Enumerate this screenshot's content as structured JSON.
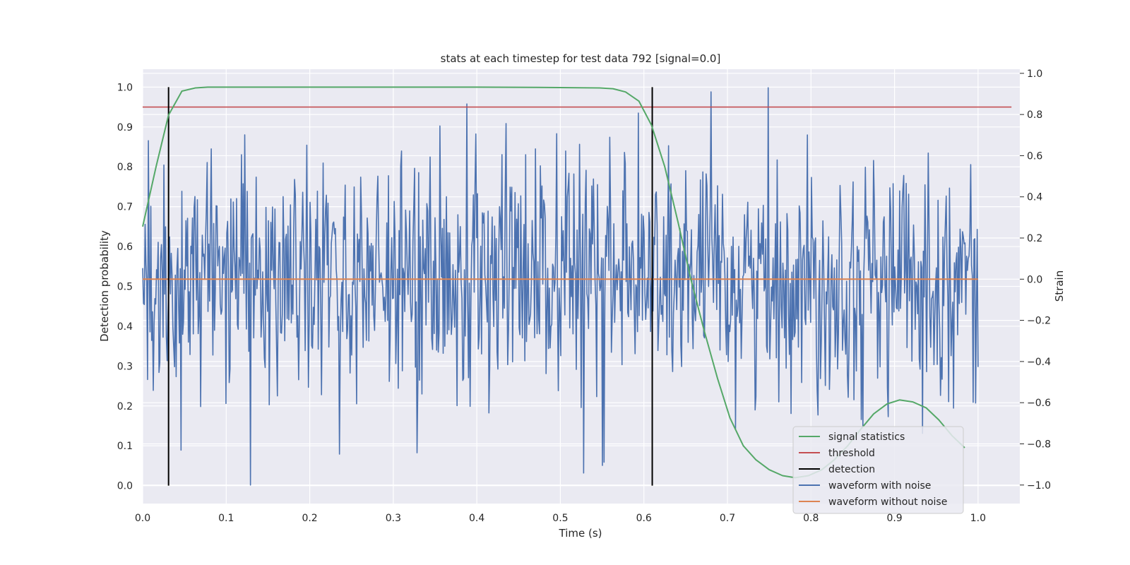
{
  "chart_data": {
    "type": "line",
    "title": "stats at each timestep for test data 792 [signal=0.0]",
    "xlabel": "Time (s)",
    "ylabel": "Detection probability",
    "ylabel_right": "Strain",
    "xlim": [
      0.0,
      1.05
    ],
    "ylim": [
      -0.045,
      1.045
    ],
    "ylim_right": [
      -1.09,
      1.02
    ],
    "xticks": [
      0.0,
      0.1,
      0.2,
      0.3,
      0.4,
      0.5,
      0.6,
      0.7,
      0.8,
      0.9,
      1.0
    ],
    "xtick_labels": [
      "0.0",
      "0.1",
      "0.2",
      "0.3",
      "0.4",
      "0.5",
      "0.6",
      "0.7",
      "0.8",
      "0.9",
      "1.0"
    ],
    "yticks": [
      0.0,
      0.1,
      0.2,
      0.3,
      0.4,
      0.5,
      0.6,
      0.7,
      0.8,
      0.9,
      1.0
    ],
    "ytick_labels": [
      "0.0",
      "0.1",
      "0.2",
      "0.3",
      "0.4",
      "0.5",
      "0.6",
      "0.7",
      "0.8",
      "0.9",
      "1.0"
    ],
    "yticks_right": [
      -1.0,
      -0.8,
      -0.6,
      -0.4,
      -0.2,
      0.0,
      0.2,
      0.4,
      0.6,
      0.8,
      1.0
    ],
    "ytick_labels_right": [
      "−1.0",
      "−0.8",
      "−0.6",
      "−0.4",
      "−0.2",
      "0.0",
      "0.2",
      "0.4",
      "0.6",
      "0.8",
      "1.0"
    ],
    "grid": true,
    "legend_position": "lower-right",
    "series": [
      {
        "name": "signal statistics",
        "color": "#55a868",
        "axis": "left",
        "x": [
          0.0,
          0.016,
          0.031,
          0.047,
          0.063,
          0.078,
          0.1,
          0.2,
          0.3,
          0.4,
          0.5,
          0.547,
          0.563,
          0.578,
          0.594,
          0.609,
          0.625,
          0.641,
          0.656,
          0.672,
          0.688,
          0.703,
          0.719,
          0.734,
          0.75,
          0.766,
          0.781,
          0.797,
          0.813,
          0.828,
          0.844,
          0.859,
          0.875,
          0.891,
          0.906,
          0.922,
          0.938,
          0.953,
          0.969,
          0.984
        ],
        "y": [
          0.65,
          0.8,
          0.93,
          0.99,
          0.998,
          1.0,
          1.0,
          1.0,
          1.0,
          1.0,
          0.999,
          0.998,
          0.996,
          0.988,
          0.965,
          0.905,
          0.8,
          0.66,
          0.52,
          0.39,
          0.27,
          0.17,
          0.1,
          0.065,
          0.04,
          0.025,
          0.02,
          0.025,
          0.04,
          0.065,
          0.1,
          0.14,
          0.18,
          0.205,
          0.215,
          0.21,
          0.195,
          0.165,
          0.125,
          0.095
        ]
      },
      {
        "name": "threshold",
        "color": "#c44e52",
        "axis": "left",
        "x": [
          0.0,
          1.04
        ],
        "y": [
          0.95,
          0.95
        ]
      },
      {
        "name": "detection",
        "color": "#000000",
        "axis": "left",
        "x": [
          0.031,
          0.61
        ],
        "y": [
          0.0,
          1.0
        ]
      },
      {
        "name": "waveform with noise",
        "color": "#4c72b0",
        "axis": "right",
        "x_start": 0.0,
        "x_end": 1.0,
        "samples": 1024,
        "y_range": [
          -1.0,
          0.93
        ],
        "noise_sd": 0.28
      },
      {
        "name": "waveform without noise",
        "color": "#dd8452",
        "axis": "right",
        "x": [
          0.0,
          1.0
        ],
        "y": [
          0.0,
          0.0
        ]
      }
    ]
  }
}
